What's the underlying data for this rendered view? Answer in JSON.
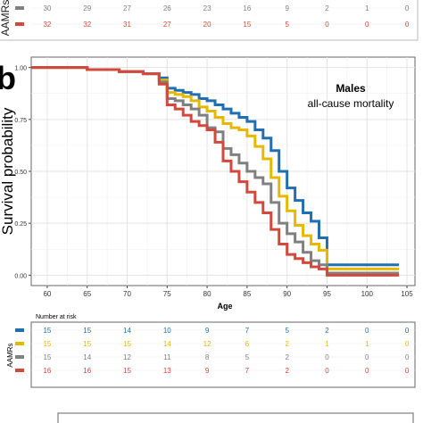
{
  "top_table": {
    "ylabel": "AAMRs",
    "rows": [
      {
        "color": "#808080",
        "values": [
          "30",
          "29",
          "27",
          "26",
          "23",
          "16",
          "9",
          "2",
          "1",
          "0"
        ]
      },
      {
        "color": "#d2483c",
        "values": [
          "32",
          "32",
          "31",
          "27",
          "20",
          "15",
          "5",
          "0",
          "0",
          "0"
        ]
      }
    ]
  },
  "panel_label": "b",
  "chart_data": {
    "type": "line",
    "title": "Males",
    "subtitle": "all-cause mortality",
    "xlabel": "Age",
    "ylabel": "Survival probability",
    "xlim": [
      58,
      106
    ],
    "ylim": [
      -0.05,
      1.05
    ],
    "xticks": [
      60,
      65,
      70,
      75,
      80,
      85,
      90,
      95,
      100,
      105
    ],
    "yticks": [
      0.0,
      0.25,
      0.5,
      0.75,
      1.0
    ],
    "ytick_labels": [
      "0.00",
      "0.25",
      "0.50",
      "0.75",
      "1.00"
    ],
    "grid": true,
    "step": true,
    "series": [
      {
        "color": "#1f6fb2",
        "points": [
          [
            58,
            1.0
          ],
          [
            64,
            1.0
          ],
          [
            65,
            0.99
          ],
          [
            68,
            0.99
          ],
          [
            69,
            0.98
          ],
          [
            72,
            0.97
          ],
          [
            74,
            0.95
          ],
          [
            75,
            0.9
          ],
          [
            76,
            0.89
          ],
          [
            77,
            0.88
          ],
          [
            78,
            0.87
          ],
          [
            79,
            0.85
          ],
          [
            80,
            0.84
          ],
          [
            81,
            0.82
          ],
          [
            82,
            0.8
          ],
          [
            83,
            0.78
          ],
          [
            84,
            0.76
          ],
          [
            85,
            0.74
          ],
          [
            86,
            0.7
          ],
          [
            87,
            0.66
          ],
          [
            88,
            0.6
          ],
          [
            89,
            0.5
          ],
          [
            90,
            0.42
          ],
          [
            91,
            0.36
          ],
          [
            92,
            0.3
          ],
          [
            93,
            0.26
          ],
          [
            94,
            0.18
          ],
          [
            95,
            0.05
          ],
          [
            104,
            0.05
          ]
        ]
      },
      {
        "color": "#e6b800",
        "points": [
          [
            58,
            1.0
          ],
          [
            64,
            1.0
          ],
          [
            65,
            0.99
          ],
          [
            68,
            0.99
          ],
          [
            69,
            0.98
          ],
          [
            72,
            0.97
          ],
          [
            74,
            0.94
          ],
          [
            75,
            0.88
          ],
          [
            76,
            0.87
          ],
          [
            77,
            0.86
          ],
          [
            78,
            0.84
          ],
          [
            79,
            0.81
          ],
          [
            80,
            0.79
          ],
          [
            81,
            0.76
          ],
          [
            82,
            0.73
          ],
          [
            83,
            0.71
          ],
          [
            84,
            0.7
          ],
          [
            85,
            0.67
          ],
          [
            86,
            0.62
          ],
          [
            87,
            0.56
          ],
          [
            88,
            0.47
          ],
          [
            89,
            0.38
          ],
          [
            90,
            0.31
          ],
          [
            91,
            0.24
          ],
          [
            92,
            0.19
          ],
          [
            93,
            0.15
          ],
          [
            94,
            0.12
          ],
          [
            95,
            0.03
          ],
          [
            104,
            0.03
          ]
        ]
      },
      {
        "color": "#808080",
        "points": [
          [
            58,
            1.0
          ],
          [
            64,
            1.0
          ],
          [
            65,
            0.99
          ],
          [
            68,
            0.99
          ],
          [
            69,
            0.98
          ],
          [
            72,
            0.97
          ],
          [
            74,
            0.93
          ],
          [
            75,
            0.85
          ],
          [
            76,
            0.84
          ],
          [
            77,
            0.82
          ],
          [
            78,
            0.8
          ],
          [
            79,
            0.77
          ],
          [
            80,
            0.71
          ],
          [
            81,
            0.69
          ],
          [
            82,
            0.61
          ],
          [
            83,
            0.58
          ],
          [
            84,
            0.54
          ],
          [
            85,
            0.5
          ],
          [
            86,
            0.47
          ],
          [
            87,
            0.44
          ],
          [
            88,
            0.35
          ],
          [
            89,
            0.25
          ],
          [
            90,
            0.2
          ],
          [
            91,
            0.16
          ],
          [
            92,
            0.11
          ],
          [
            93,
            0.07
          ],
          [
            94,
            0.05
          ],
          [
            95,
            0.01
          ],
          [
            104,
            0.01
          ]
        ]
      },
      {
        "color": "#d2483c",
        "points": [
          [
            58,
            1.0
          ],
          [
            64,
            1.0
          ],
          [
            65,
            0.99
          ],
          [
            68,
            0.99
          ],
          [
            69,
            0.98
          ],
          [
            72,
            0.97
          ],
          [
            74,
            0.92
          ],
          [
            75,
            0.82
          ],
          [
            76,
            0.8
          ],
          [
            77,
            0.77
          ],
          [
            78,
            0.74
          ],
          [
            79,
            0.72
          ],
          [
            80,
            0.7
          ],
          [
            81,
            0.64
          ],
          [
            82,
            0.55
          ],
          [
            83,
            0.5
          ],
          [
            84,
            0.45
          ],
          [
            85,
            0.4
          ],
          [
            86,
            0.35
          ],
          [
            87,
            0.3
          ],
          [
            88,
            0.22
          ],
          [
            89,
            0.15
          ],
          [
            90,
            0.1
          ],
          [
            91,
            0.08
          ],
          [
            92,
            0.06
          ],
          [
            93,
            0.04
          ],
          [
            94,
            0.03
          ],
          [
            95,
            0.0
          ],
          [
            104,
            0.0
          ]
        ]
      }
    ]
  },
  "risk_table": {
    "title": "Number at risk",
    "ylabel": "AAMRs",
    "rows": [
      {
        "color": "#1f6fb2",
        "values": [
          "15",
          "15",
          "14",
          "10",
          "9",
          "7",
          "5",
          "2",
          "0",
          "0"
        ]
      },
      {
        "color": "#e6b800",
        "values": [
          "15",
          "15",
          "15",
          "14",
          "12",
          "6",
          "2",
          "1",
          "1",
          "0"
        ]
      },
      {
        "color": "#808080",
        "values": [
          "15",
          "14",
          "12",
          "11",
          "8",
          "5",
          "2",
          "0",
          "0",
          "0"
        ]
      },
      {
        "color": "#d2483c",
        "values": [
          "16",
          "16",
          "15",
          "13",
          "9",
          "7",
          "2",
          "0",
          "0",
          "0"
        ]
      }
    ]
  }
}
